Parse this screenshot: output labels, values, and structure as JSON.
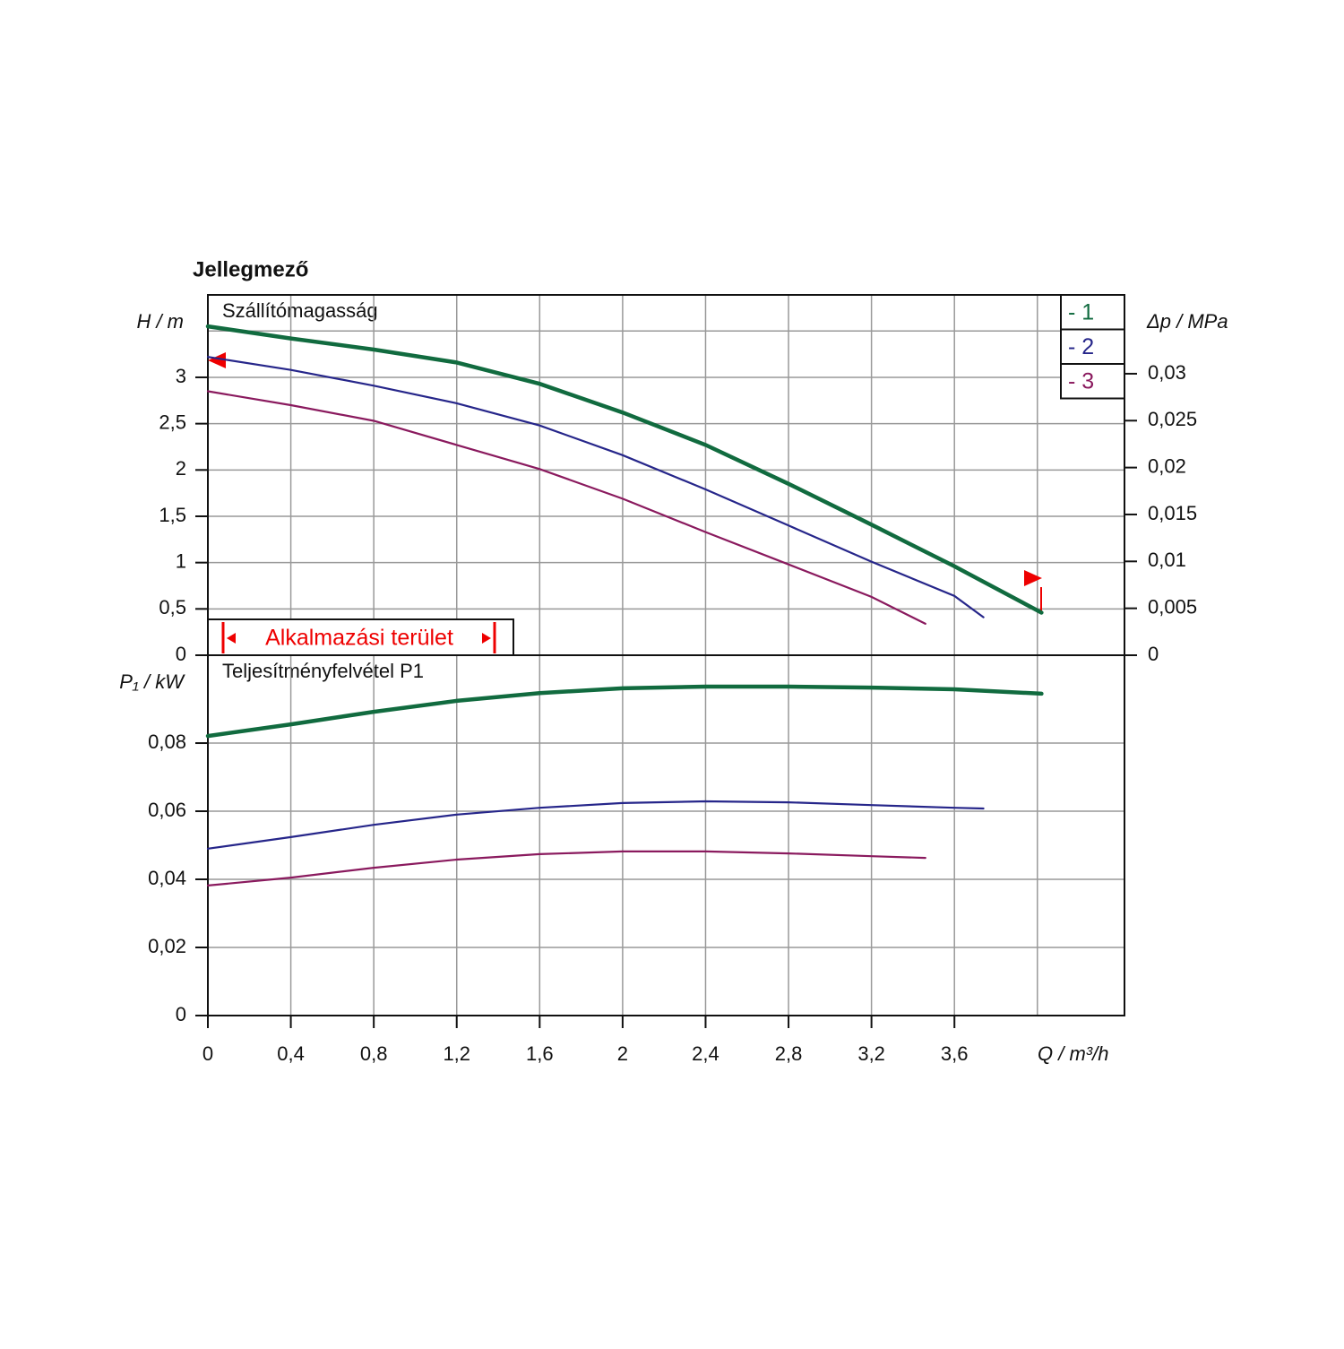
{
  "chart_data": [
    {
      "type": "line",
      "title": "Jellegmező",
      "annotation": "Szállítómagasság",
      "ylabel": "H / m",
      "y2label": "Δp / MPa",
      "application_range": "Alkalmazási terület",
      "ylim": [
        0,
        3.89
      ],
      "yticks": [
        0,
        {
          "value": 0.5,
          "label": "0,5"
        },
        1,
        {
          "value": 1.5,
          "label": "1,5"
        },
        2,
        {
          "value": 2.5,
          "label": "2,5"
        },
        3
      ],
      "ygrid": [
        0.5,
        1,
        1.5,
        2,
        2.5,
        3,
        3.5
      ],
      "y2lim": [
        0,
        0.0384
      ],
      "y2ticks": [
        0,
        {
          "value": 0.005,
          "label": "0,005"
        },
        {
          "value": 0.01,
          "label": "0,01"
        },
        {
          "value": 0.015,
          "label": "0,015"
        },
        {
          "value": 0.02,
          "label": "0,02"
        },
        {
          "value": 0.025,
          "label": "0,025"
        },
        {
          "value": 0.03,
          "label": "0,03"
        }
      ],
      "grid": true,
      "legend": "upper right",
      "series": [
        {
          "name": "- 1",
          "color": "#116b3f",
          "x": [
            0,
            0.4,
            0.8,
            1.2,
            1.6,
            2.0,
            2.4,
            2.8,
            3.2,
            3.6,
            4.02
          ],
          "values": [
            3.55,
            3.42,
            3.3,
            3.16,
            2.93,
            2.62,
            2.27,
            1.85,
            1.41,
            0.96,
            0.46
          ]
        },
        {
          "name": "- 2",
          "color": "#26268a",
          "x": [
            0,
            0.4,
            0.8,
            1.2,
            1.6,
            2.0,
            2.4,
            2.8,
            3.2,
            3.6,
            3.74
          ],
          "values": [
            3.22,
            3.08,
            2.91,
            2.72,
            2.48,
            2.16,
            1.79,
            1.4,
            1.01,
            0.64,
            0.41
          ]
        },
        {
          "name": "- 3",
          "color": "#8a1a5e",
          "x": [
            0,
            0.4,
            0.8,
            1.2,
            1.6,
            2.0,
            2.4,
            2.8,
            3.2,
            3.46
          ],
          "values": [
            2.85,
            2.7,
            2.53,
            2.27,
            2.01,
            1.69,
            1.33,
            0.98,
            0.63,
            0.34
          ]
        }
      ]
    },
    {
      "type": "line",
      "annotation": "Teljesítményfelvétel P1",
      "ylabel": "P₁ / kW",
      "xlabel": "Q / m³/h",
      "xlim": [
        0,
        4.42
      ],
      "xticks": [
        0,
        {
          "value": 0.4,
          "label": "0,4"
        },
        {
          "value": 0.8,
          "label": "0,8"
        },
        {
          "value": 1.2,
          "label": "1,2"
        },
        {
          "value": 1.6,
          "label": "1,6"
        },
        2,
        {
          "value": 2.4,
          "label": "2,4"
        },
        {
          "value": 2.8,
          "label": "2,8"
        },
        {
          "value": 3.2,
          "label": "3,2"
        },
        {
          "value": 3.6,
          "label": "3,6"
        }
      ],
      "xgrid": [
        0.4,
        0.8,
        1.2,
        1.6,
        2,
        2.4,
        2.8,
        3.2,
        3.6,
        4
      ],
      "ylim": [
        0,
        0.1058
      ],
      "yticks": [
        0,
        {
          "value": 0.02,
          "label": "0,02"
        },
        {
          "value": 0.04,
          "label": "0,04"
        },
        {
          "value": 0.06,
          "label": "0,06"
        },
        {
          "value": 0.08,
          "label": "0,08"
        }
      ],
      "grid": true,
      "series": [
        {
          "name": "- 1",
          "color": "#116b3f",
          "x": [
            0,
            0.4,
            0.8,
            1.2,
            1.6,
            2.0,
            2.4,
            2.8,
            3.2,
            3.6,
            4.02
          ],
          "values": [
            0.0821,
            0.0855,
            0.0892,
            0.0924,
            0.0947,
            0.0961,
            0.0966,
            0.0966,
            0.0963,
            0.0958,
            0.0945
          ]
        },
        {
          "name": "- 2",
          "color": "#26268a",
          "x": [
            0,
            0.4,
            0.8,
            1.2,
            1.6,
            2.0,
            2.4,
            2.8,
            3.2,
            3.6,
            3.74
          ],
          "values": [
            0.049,
            0.0524,
            0.056,
            0.059,
            0.061,
            0.0624,
            0.0629,
            0.0626,
            0.0618,
            0.061,
            0.0608
          ]
        },
        {
          "name": "- 3",
          "color": "#8a1a5e",
          "x": [
            0,
            0.4,
            0.8,
            1.2,
            1.6,
            2.0,
            2.4,
            2.8,
            3.2,
            3.46
          ],
          "values": [
            0.0382,
            0.0405,
            0.0434,
            0.0458,
            0.0474,
            0.0482,
            0.0482,
            0.0476,
            0.0468,
            0.0463
          ]
        }
      ]
    }
  ]
}
